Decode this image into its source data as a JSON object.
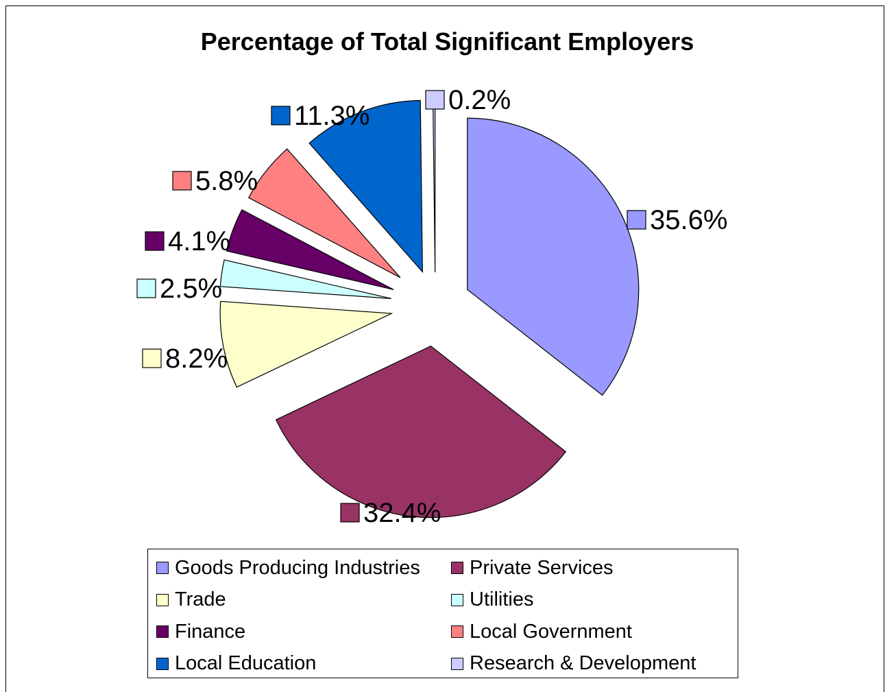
{
  "chart_data": {
    "type": "pie",
    "title": "Percentage of Total Significant Employers",
    "exploded": true,
    "label_format": "percent",
    "legend_position": "bottom",
    "slices": [
      {
        "name": "Goods Producing Industries",
        "value": 35.6,
        "label": "35.6%",
        "color": "#9999ff"
      },
      {
        "name": "Private Services",
        "value": 32.4,
        "label": "32.4%",
        "color": "#993366"
      },
      {
        "name": "Trade",
        "value": 8.2,
        "label": "8.2%",
        "color": "#ffffcc"
      },
      {
        "name": "Utilities",
        "value": 2.5,
        "label": "2.5%",
        "color": "#ccffff"
      },
      {
        "name": "Finance",
        "value": 4.1,
        "label": "4.1%",
        "color": "#660066"
      },
      {
        "name": "Local Government",
        "value": 5.8,
        "label": "5.8%",
        "color": "#ff8080"
      },
      {
        "name": "Local Education",
        "value": 11.3,
        "label": "11.3%",
        "color": "#0066cc"
      },
      {
        "name": "Research & Development",
        "value": 0.2,
        "label": "0.2%",
        "color": "#ccccff"
      }
    ]
  }
}
